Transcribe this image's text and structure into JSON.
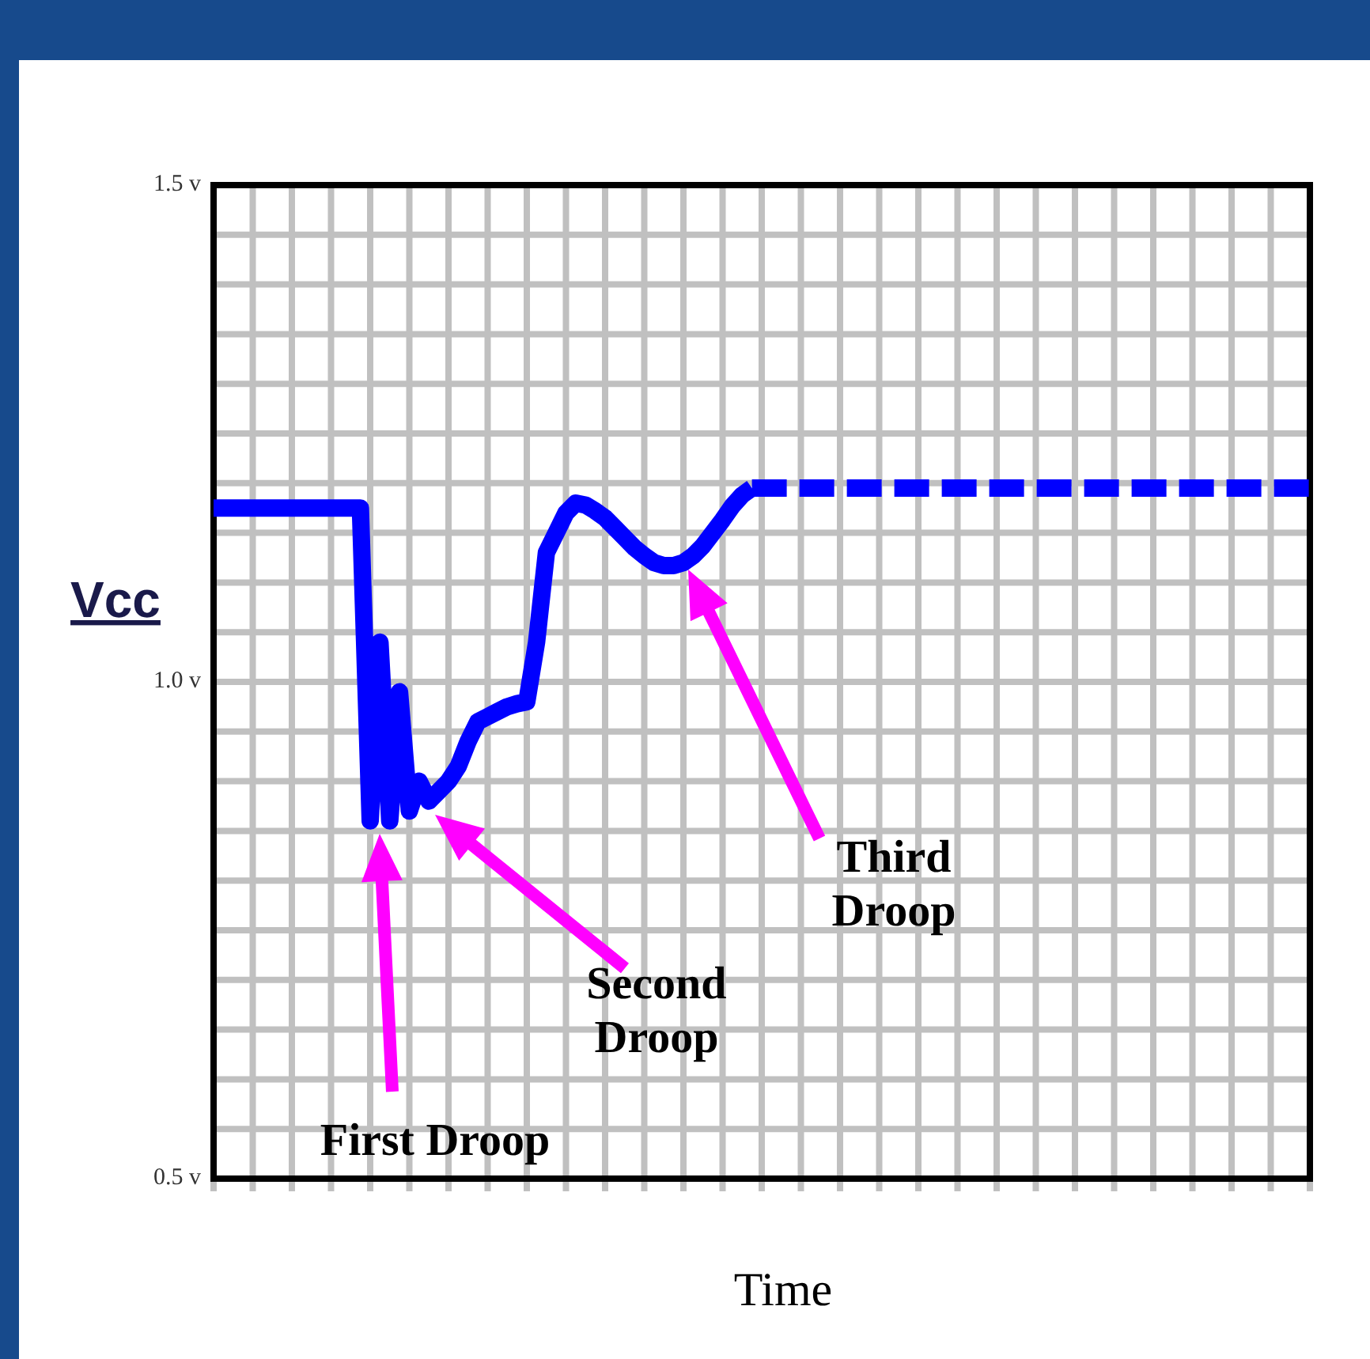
{
  "chart_data": {
    "type": "line",
    "xlabel": "Time",
    "ylabel": "Vcc",
    "ylim": [
      0.5,
      1.5
    ],
    "categories": [
      null,
      null,
      null,
      null,
      null,
      null,
      null,
      null,
      null,
      null,
      null,
      null,
      null,
      null,
      null,
      null,
      null,
      null,
      null,
      null,
      null,
      null,
      null,
      null,
      null,
      null,
      null,
      null,
      null,
      null,
      null,
      null,
      null,
      null,
      null,
      null,
      null,
      null,
      null,
      null,
      null,
      null,
      null,
      null,
      null,
      null,
      null,
      null,
      null,
      null,
      null,
      null,
      null,
      null,
      null,
      null,
      null,
      null,
      null,
      null,
      null,
      null,
      null,
      null,
      null,
      null,
      null,
      null,
      null,
      null,
      null,
      null,
      null,
      null,
      null,
      null,
      null,
      null,
      null,
      null,
      null,
      null,
      null,
      null,
      null,
      null,
      null,
      null,
      null,
      null,
      null,
      null,
      null,
      null,
      null,
      null,
      null,
      null,
      null,
      null,
      null,
      null,
      null,
      null,
      null,
      null,
      null,
      null,
      null,
      null,
      null,
      null,
      null
    ],
    "yticks": [
      {
        "value": 0.5,
        "label": "0.5 v"
      },
      {
        "value": 1.0,
        "label": "1.0 v"
      },
      {
        "value": 1.5,
        "label": "1.5 v"
      }
    ],
    "tick_labels": "y",
    "grid": true,
    "series": [
      {
        "color": "#0000ff",
        "line_style": "solid",
        "values": [
          1.175,
          1.175,
          1.175,
          1.175,
          1.175,
          1.175,
          1.175,
          1.175,
          1.175,
          1.175,
          1.175,
          1.175,
          1.175,
          1.175,
          1.175,
          1.175,
          0.86,
          1.04,
          0.86,
          0.99,
          0.87,
          0.9,
          0.88,
          0.89,
          0.9,
          0.915,
          0.94,
          0.96,
          0.965,
          0.97,
          0.975,
          0.978,
          0.98,
          1.04,
          1.13,
          1.15,
          1.17,
          1.18,
          1.178,
          1.172,
          1.165,
          1.155,
          1.145,
          1.135,
          1.127,
          1.12,
          1.117,
          1.117,
          1.12,
          1.127,
          1.137,
          1.15,
          1.163,
          1.177,
          1.188,
          1.195,
          null,
          null,
          null,
          null,
          null,
          null,
          null,
          null,
          null,
          null,
          null,
          null,
          null,
          null,
          null,
          null,
          null,
          null,
          null,
          null,
          null,
          null,
          null,
          null,
          null,
          null,
          null,
          null,
          null,
          null,
          null,
          null,
          null,
          null,
          null,
          null,
          null,
          null,
          null,
          null,
          null,
          null,
          null,
          null,
          null,
          null,
          null,
          null,
          null,
          null,
          null,
          null,
          null,
          null,
          null,
          null,
          null
        ]
      },
      {
        "color": "#0000ff",
        "line_style": "dashed",
        "values": [
          null,
          null,
          null,
          null,
          null,
          null,
          null,
          null,
          null,
          null,
          null,
          null,
          null,
          null,
          null,
          null,
          null,
          null,
          null,
          null,
          null,
          null,
          null,
          null,
          null,
          null,
          null,
          null,
          null,
          null,
          null,
          null,
          null,
          null,
          null,
          null,
          null,
          null,
          null,
          null,
          null,
          null,
          null,
          null,
          null,
          null,
          null,
          null,
          null,
          null,
          null,
          null,
          null,
          null,
          null,
          1.195,
          1.195,
          1.195,
          1.195,
          1.195,
          1.195,
          1.195,
          1.195,
          1.195,
          1.195,
          1.195,
          1.195,
          1.195,
          1.195,
          1.195,
          1.195,
          1.195,
          1.195,
          1.195,
          1.195,
          1.195,
          1.195,
          1.195,
          1.195,
          1.195,
          1.195,
          1.195,
          1.195,
          1.195,
          1.195,
          1.195,
          1.195,
          1.195,
          1.195,
          1.195,
          1.195,
          1.195,
          1.195,
          1.195,
          1.195,
          1.195,
          1.195,
          1.195,
          1.195,
          1.195,
          1.195,
          1.195,
          1.195,
          1.195,
          1.195,
          1.195,
          1.195,
          1.195,
          1.195,
          1.195,
          1.195,
          1.195,
          1.195
        ]
      }
    ],
    "annotations": [
      "First Droop",
      "Second\nDroop",
      "Third\nDroop"
    ]
  }
}
